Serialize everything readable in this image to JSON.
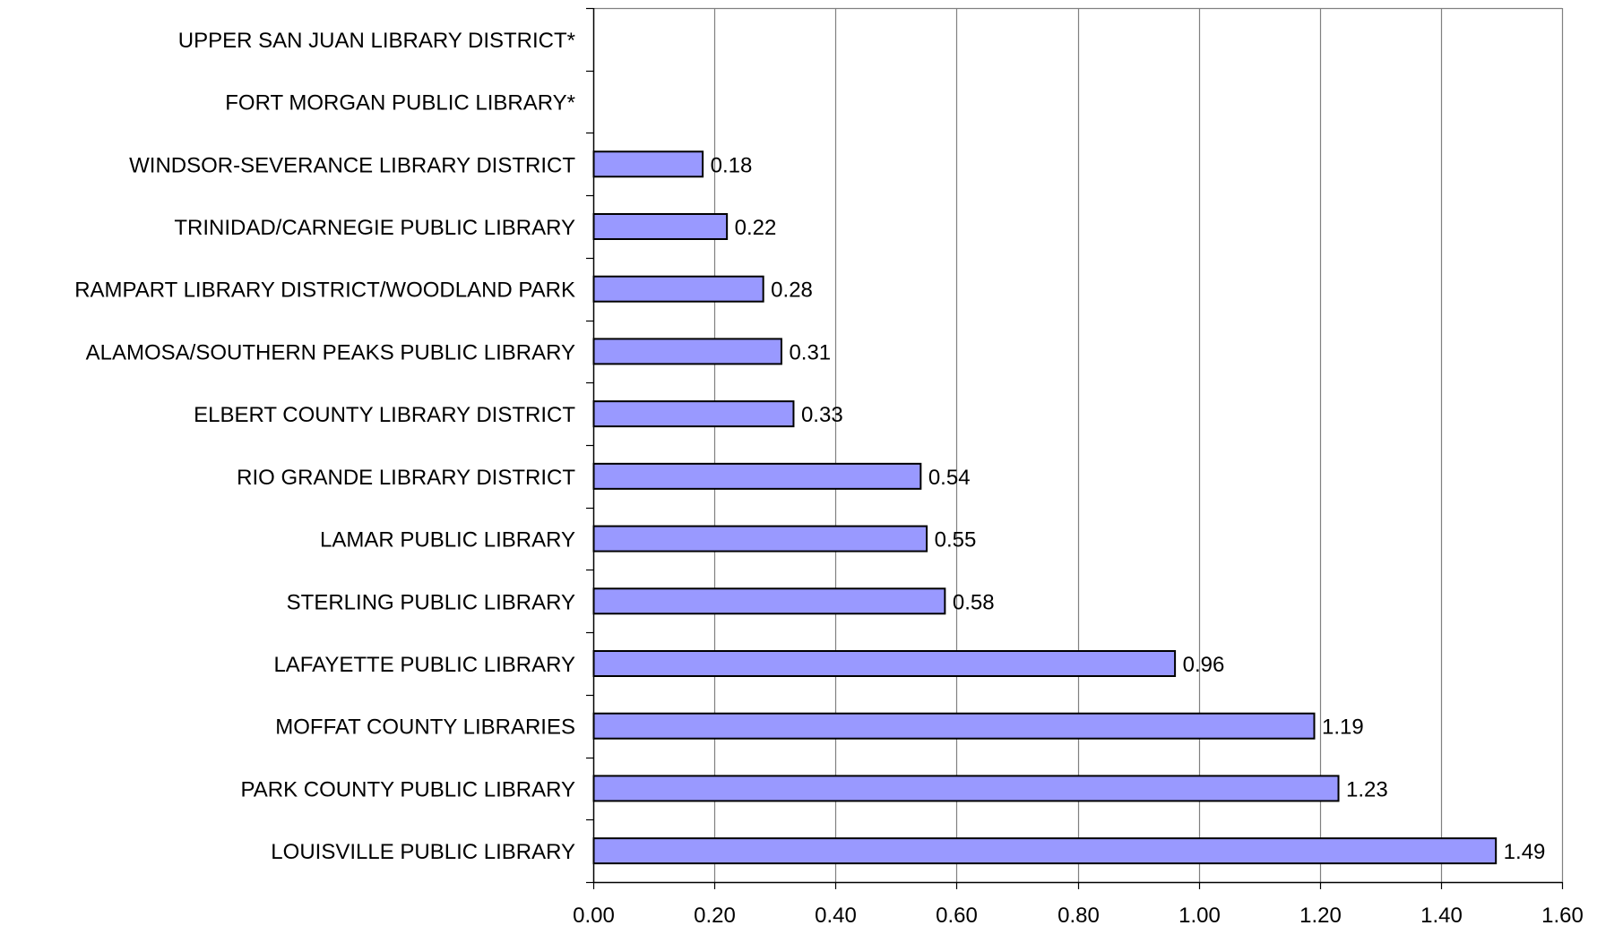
{
  "chart_data": {
    "type": "bar",
    "orientation": "horizontal",
    "title": "",
    "xlabel": "",
    "ylabel": "",
    "categories": [
      "UPPER SAN JUAN LIBRARY DISTRICT*",
      "FORT MORGAN PUBLIC LIBRARY*",
      "WINDSOR-SEVERANCE LIBRARY DISTRICT",
      "TRINIDAD/CARNEGIE PUBLIC LIBRARY",
      "RAMPART LIBRARY DISTRICT/WOODLAND PARK",
      "ALAMOSA/SOUTHERN PEAKS PUBLIC LIBRARY",
      "ELBERT COUNTY LIBRARY DISTRICT",
      "RIO GRANDE LIBRARY DISTRICT",
      "LAMAR PUBLIC LIBRARY",
      "STERLING PUBLIC LIBRARY",
      "LAFAYETTE PUBLIC LIBRARY",
      "MOFFAT COUNTY LIBRARIES",
      "PARK COUNTY PUBLIC LIBRARY",
      "LOUISVILLE PUBLIC LIBRARY"
    ],
    "values": [
      null,
      null,
      0.18,
      0.22,
      0.28,
      0.31,
      0.33,
      0.54,
      0.55,
      0.58,
      0.96,
      1.19,
      1.23,
      1.49
    ],
    "data_labels": [
      "",
      "",
      "0.18",
      "0.22",
      "0.28",
      "0.31",
      "0.33",
      "0.54",
      "0.55",
      "0.58",
      "0.96",
      "1.19",
      "1.23",
      "1.49"
    ],
    "xlim": [
      0,
      1.6
    ],
    "x_ticks": [
      0,
      0.2,
      0.4,
      0.6,
      0.8,
      1.0,
      1.2,
      1.4,
      1.6
    ],
    "x_tick_labels": [
      "0.00",
      "0.20",
      "0.40",
      "0.60",
      "0.80",
      "1.00",
      "1.20",
      "1.40",
      "1.60"
    ],
    "grid": "vertical",
    "legend": "none",
    "colors": {
      "bar_fill": "#9999ff",
      "bar_stroke": "#000000",
      "grid": "#808080",
      "axis": "#000000",
      "text": "#000000"
    }
  }
}
